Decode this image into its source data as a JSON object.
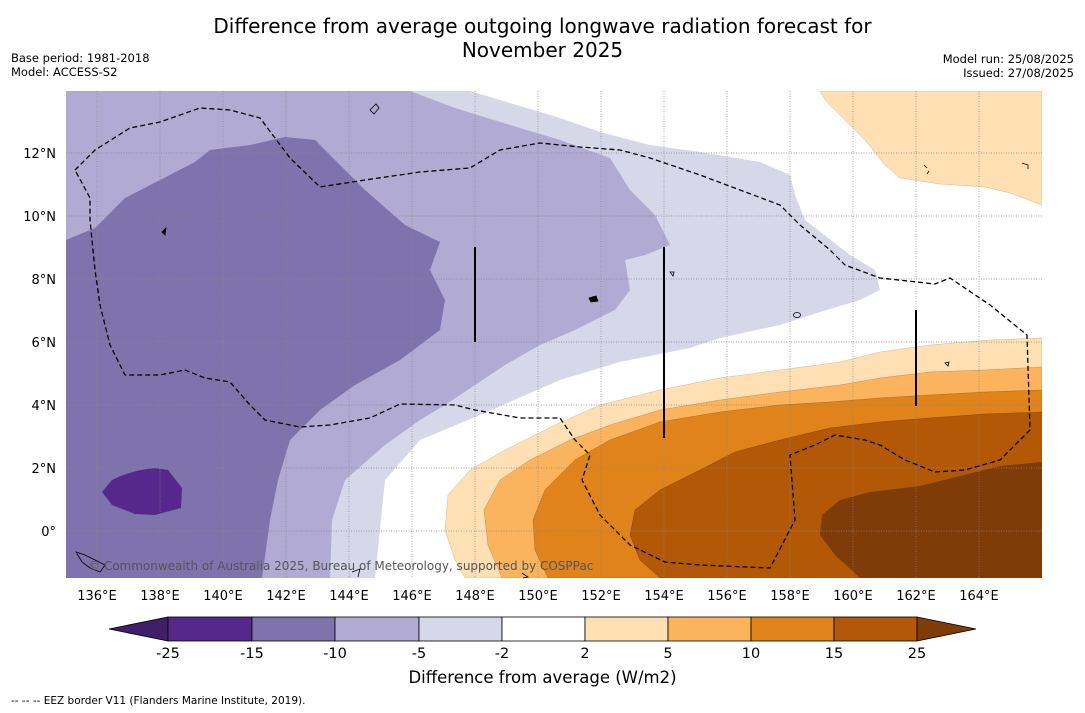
{
  "title_line1": "Difference from average outgoing longwave radiation forecast for",
  "title_line2": "November 2025",
  "base_period": "Base period: 1981-2018",
  "model": "Model: ACCESS-S2",
  "model_run": "Model run: 25/08/2025",
  "issued": "Issued: 27/08/2025",
  "copyright": "© Commonwealth of Australia 2025, Bureau of Meteorology, supported by COSPPac",
  "x_ticks": [
    "136°E",
    "138°E",
    "140°E",
    "142°E",
    "144°E",
    "146°E",
    "148°E",
    "150°E",
    "152°E",
    "154°E",
    "156°E",
    "158°E",
    "160°E",
    "162°E",
    "164°E"
  ],
  "y_ticks": [
    "12°N",
    "10°N",
    "8°N",
    "6°N",
    "4°N",
    "2°N",
    "0°"
  ],
  "colorbar": {
    "labels": [
      "-25",
      "-15",
      "-10",
      "-5",
      "-2",
      "2",
      "5",
      "10",
      "15",
      "25"
    ],
    "colors": {
      "below": "#3f1f68",
      "c1": "#56288c",
      "c2": "#7f73ad",
      "c3": "#b1aad3",
      "c4": "#d7d7ea",
      "c5": "#ffffff",
      "c6": "#fee0b4",
      "c7": "#fbb35d",
      "c8": "#e1831b",
      "c9": "#b35806",
      "above": "#7f3b08"
    },
    "title": "Difference from average (W/m2)"
  },
  "legend_note": "--  --  -- EEZ border V11 (Flanders Marine Institute, 2019)."
}
